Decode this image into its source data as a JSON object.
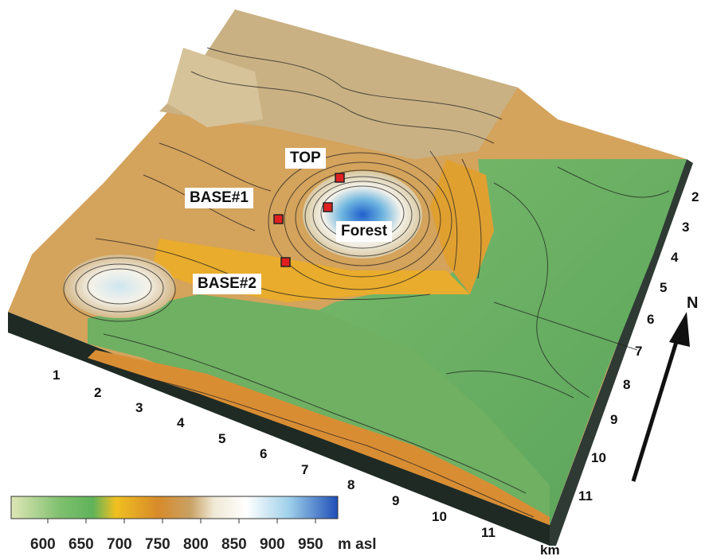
{
  "sites": [
    {
      "label": "TOP"
    },
    {
      "label": "BASE#1"
    },
    {
      "label": "Forest"
    },
    {
      "label": "BASE#2"
    }
  ],
  "axis_front": {
    "ticks": [
      "1",
      "2",
      "3",
      "4",
      "5",
      "6",
      "7",
      "8",
      "9",
      "10",
      "11"
    ],
    "unit": "km"
  },
  "axis_right": {
    "ticks": [
      "2",
      "3",
      "4",
      "5",
      "6",
      "7",
      "8",
      "9",
      "10",
      "11"
    ]
  },
  "north_label": "N",
  "scale": {
    "ticks": [
      "600",
      "650",
      "700",
      "750",
      "800",
      "850",
      "900",
      "950"
    ],
    "unit": "m asl",
    "colors": [
      "#dfe6b6",
      "#5fb35a",
      "#f0c020",
      "#cf8a3a",
      "#e9dfc6",
      "#ffffff",
      "#6fb6e0",
      "#1f4fb7"
    ]
  },
  "marker_color": "#e02020"
}
